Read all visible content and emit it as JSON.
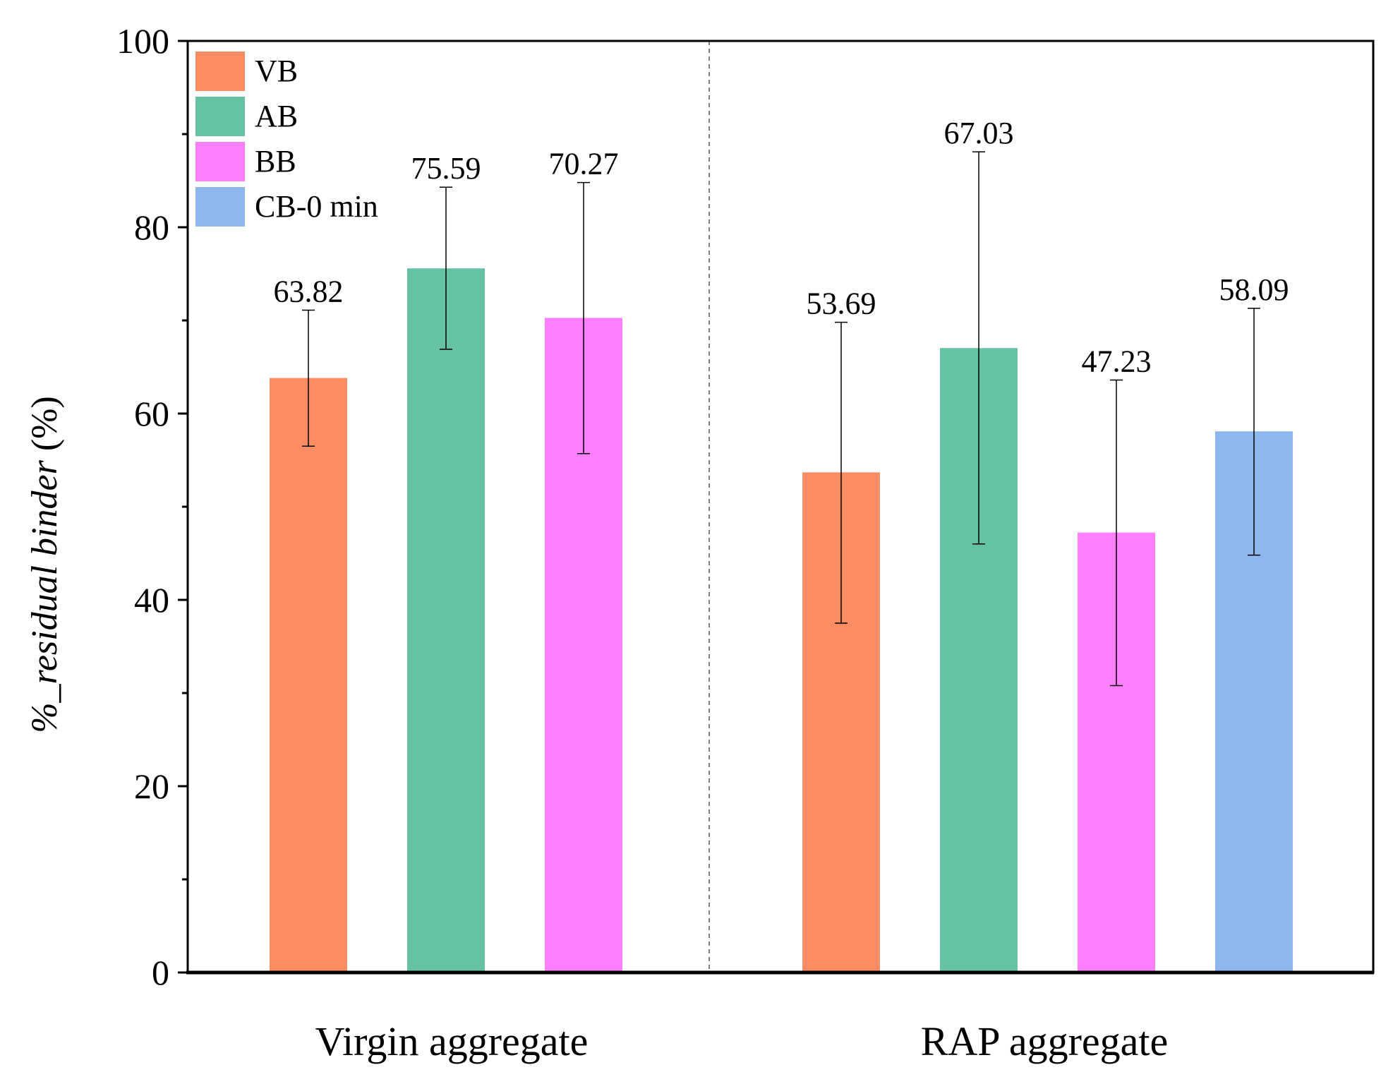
{
  "chart_data": {
    "type": "bar",
    "title": "",
    "xlabel": "",
    "ylabel": "%_residual binder (%)",
    "ylabel_parts": {
      "italic": "%_residual binder",
      "normal": " (%)"
    },
    "ylim": [
      0,
      100
    ],
    "yticks": [
      0,
      20,
      40,
      60,
      80,
      100
    ],
    "yticks_labels": [
      "0",
      "20",
      "40",
      "60",
      "80",
      "100"
    ],
    "grid": false,
    "legend_position": "top-left",
    "group_separator": "dashed",
    "groups": [
      {
        "label": "Virgin aggregate",
        "bars": [
          {
            "series": "VB",
            "value": 63.82,
            "label": "63.82",
            "err_low": 56.5,
            "err_high": 71.1
          },
          {
            "series": "AB",
            "value": 75.59,
            "label": "75.59",
            "err_low": 66.9,
            "err_high": 84.3
          },
          {
            "series": "BB",
            "value": 70.27,
            "label": "70.27",
            "err_low": 55.7,
            "err_high": 84.8
          }
        ]
      },
      {
        "label": "RAP aggregate",
        "bars": [
          {
            "series": "VB",
            "value": 53.69,
            "label": "53.69",
            "err_low": 37.5,
            "err_high": 69.8
          },
          {
            "series": "AB",
            "value": 67.03,
            "label": "67.03",
            "err_low": 46.0,
            "err_high": 88.1
          },
          {
            "series": "BB",
            "value": 47.23,
            "label": "47.23",
            "err_low": 30.8,
            "err_high": 63.6
          },
          {
            "series": "CB-0 min",
            "value": 58.09,
            "label": "58.09",
            "err_low": 44.8,
            "err_high": 71.3
          }
        ]
      }
    ],
    "series": [
      {
        "name": "VB",
        "color": "#fc8d62"
      },
      {
        "name": "AB",
        "color": "#66c2a5"
      },
      {
        "name": "BB",
        "color": "#ff80ff"
      },
      {
        "name": "CB-0 min",
        "color": "#8fb7ef"
      }
    ]
  }
}
